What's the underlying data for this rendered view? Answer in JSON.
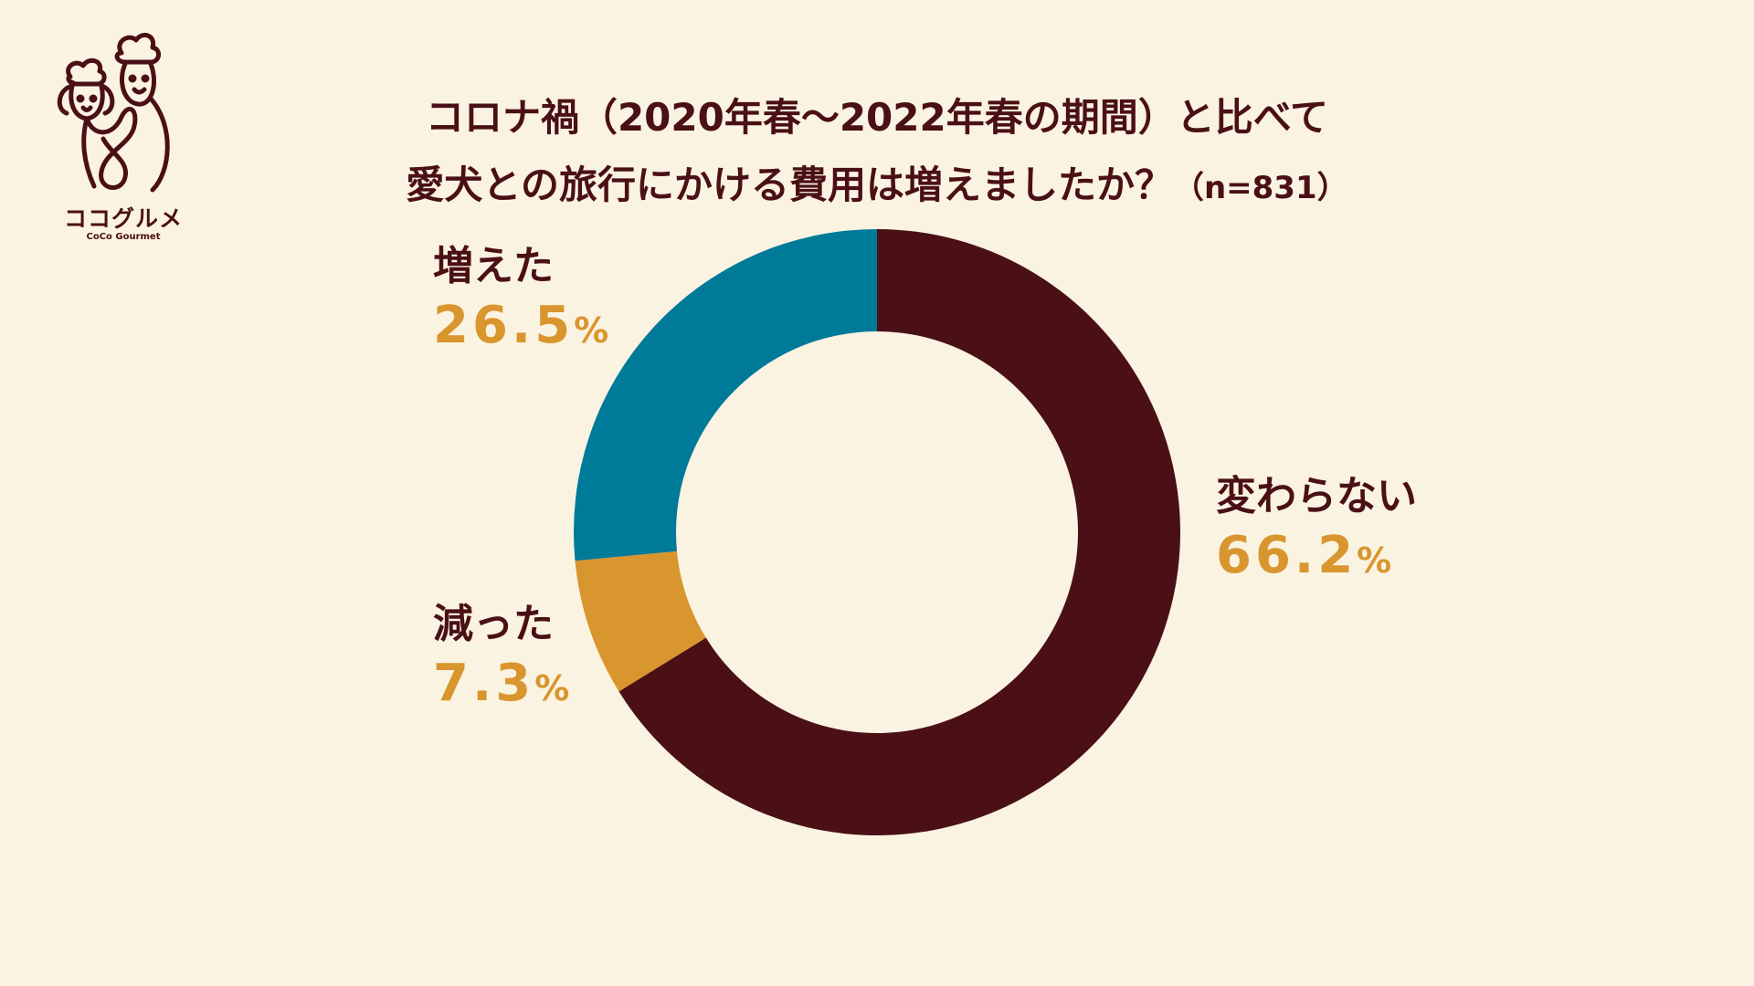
{
  "logo": {
    "name": "ココグルメ",
    "sub": "CoCo Gourmet"
  },
  "title": {
    "line1": "コロナ禍（2020年春〜2022年春の期間）と比べて",
    "line2": "愛犬との旅行にかける費用は増えましたか？",
    "sample": "（n=831）"
  },
  "colors": {
    "background": "#faf3e1",
    "text": "#4a1016",
    "percent": "#d9952e"
  },
  "chart_data": {
    "type": "pie",
    "donut": true,
    "title": "コロナ禍（2020年春〜2022年春の期間）と比べて愛犬との旅行にかける費用は増えましたか？（n=831）",
    "start": "12 o'clock",
    "direction": "clockwise",
    "slices": [
      {
        "label": "変わらない",
        "value": 66.2,
        "percent": "66.2",
        "color": "#4a1016"
      },
      {
        "label": "減った",
        "value": 7.3,
        "percent": "7.3",
        "color": "#d9952e"
      },
      {
        "label": "増えた",
        "value": 26.5,
        "percent": "26.5",
        "color": "#007a99"
      }
    ],
    "unit": "%"
  }
}
